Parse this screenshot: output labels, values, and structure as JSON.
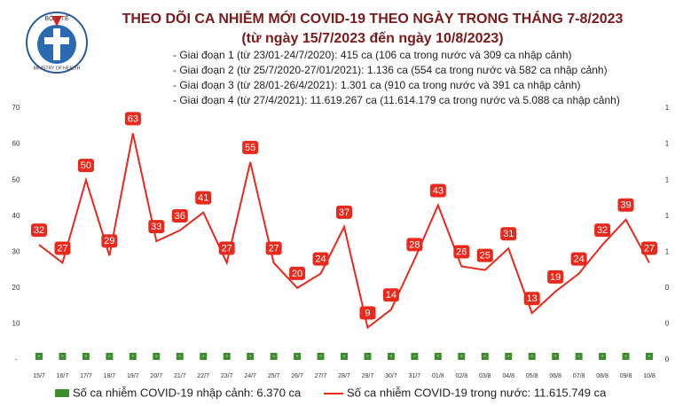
{
  "header": {
    "logo_top": "BỘ Y TẾ",
    "logo_bottom": "MINISTRY OF HEALTH"
  },
  "chart_data": {
    "type": "line",
    "title": "THEO DÕI CA NHIỄM MỚI COVID-19 THEO NGÀY TRONG THÁNG 7-8/2023",
    "subtitle": "(từ ngày 15/7/2023 đến ngày 10/8/2023)",
    "notes": [
      "- Giai đoạn 1 (từ 23/01-24/7/2020): 415 ca (106 ca trong nước và 309 ca nhập cảnh)",
      "- Giai đoạn 2 (từ 25/7/2020-27/01/2021): 1.136 ca (554 ca trong nước và 582 ca nhập cảnh)",
      "- Giai đoạn 3 (từ 28/01-26/4/2021): 1.301 ca (910 ca trong nước và 391 ca nhập cảnh)",
      "- Giai đoạn 4 (từ 27/4/2021): 11.619.267 ca (11.614.179 ca trong nước và 5.088 ca nhập cảnh)"
    ],
    "categories": [
      "15/7",
      "16/7",
      "17/7",
      "18/7",
      "19/7",
      "20/7",
      "21/7",
      "22/7",
      "23/7",
      "24/7",
      "25/7",
      "26/7",
      "27/7",
      "28/7",
      "29/7",
      "30/7",
      "31/7",
      "01/8",
      "02/8",
      "03/8",
      "04/8",
      "05/8",
      "06/8",
      "07/8",
      "08/8",
      "09/8",
      "10/8"
    ],
    "series": [
      {
        "name": "Số ca nhiễm COVID-19 nhập cảnh: 6.370 ca",
        "color": "#3e8e2f",
        "axis": "y2",
        "values": [
          0,
          0,
          0,
          0,
          0,
          0,
          0,
          0,
          0,
          0,
          0,
          0,
          0,
          0,
          0,
          0,
          0,
          0,
          0,
          0,
          0,
          0,
          0,
          0,
          0,
          0,
          0
        ],
        "value_labels": [
          "-",
          "-",
          "-",
          "-",
          "-",
          "-",
          "-",
          "-",
          "-",
          "-",
          "-",
          "-",
          "-",
          "-",
          "-",
          "-",
          "-",
          "-",
          "-",
          "-",
          "-",
          "-",
          "-",
          "-",
          "-",
          "-",
          "-"
        ]
      },
      {
        "name": "Số ca nhiễm COVID-19 trong nước: 11.615.749 ca",
        "color": "#e8291c",
        "values": [
          32,
          27,
          50,
          29,
          63,
          33,
          36,
          41,
          27,
          55,
          27,
          20,
          24,
          37,
          9,
          14,
          28,
          43,
          26,
          25,
          31,
          13,
          19,
          24,
          32,
          39,
          27
        ]
      }
    ],
    "ylim": [
      0,
      70
    ],
    "yticks": [
      {
        "value": 0,
        "label": "-"
      },
      10,
      20,
      30,
      40,
      50,
      60,
      70
    ],
    "y2lim": [
      0,
      1.4
    ],
    "y2ticks": [
      {
        "value": 0,
        "label": "0"
      },
      {
        "value": 0.2,
        "label": "0"
      },
      {
        "value": 0.4,
        "label": "0"
      },
      {
        "value": 0.6,
        "label": "1"
      },
      {
        "value": 0.8,
        "label": "1"
      },
      {
        "value": 1,
        "label": "1"
      },
      {
        "value": 1.2,
        "label": "1"
      },
      {
        "value": 1.4,
        "label": "1"
      }
    ]
  }
}
